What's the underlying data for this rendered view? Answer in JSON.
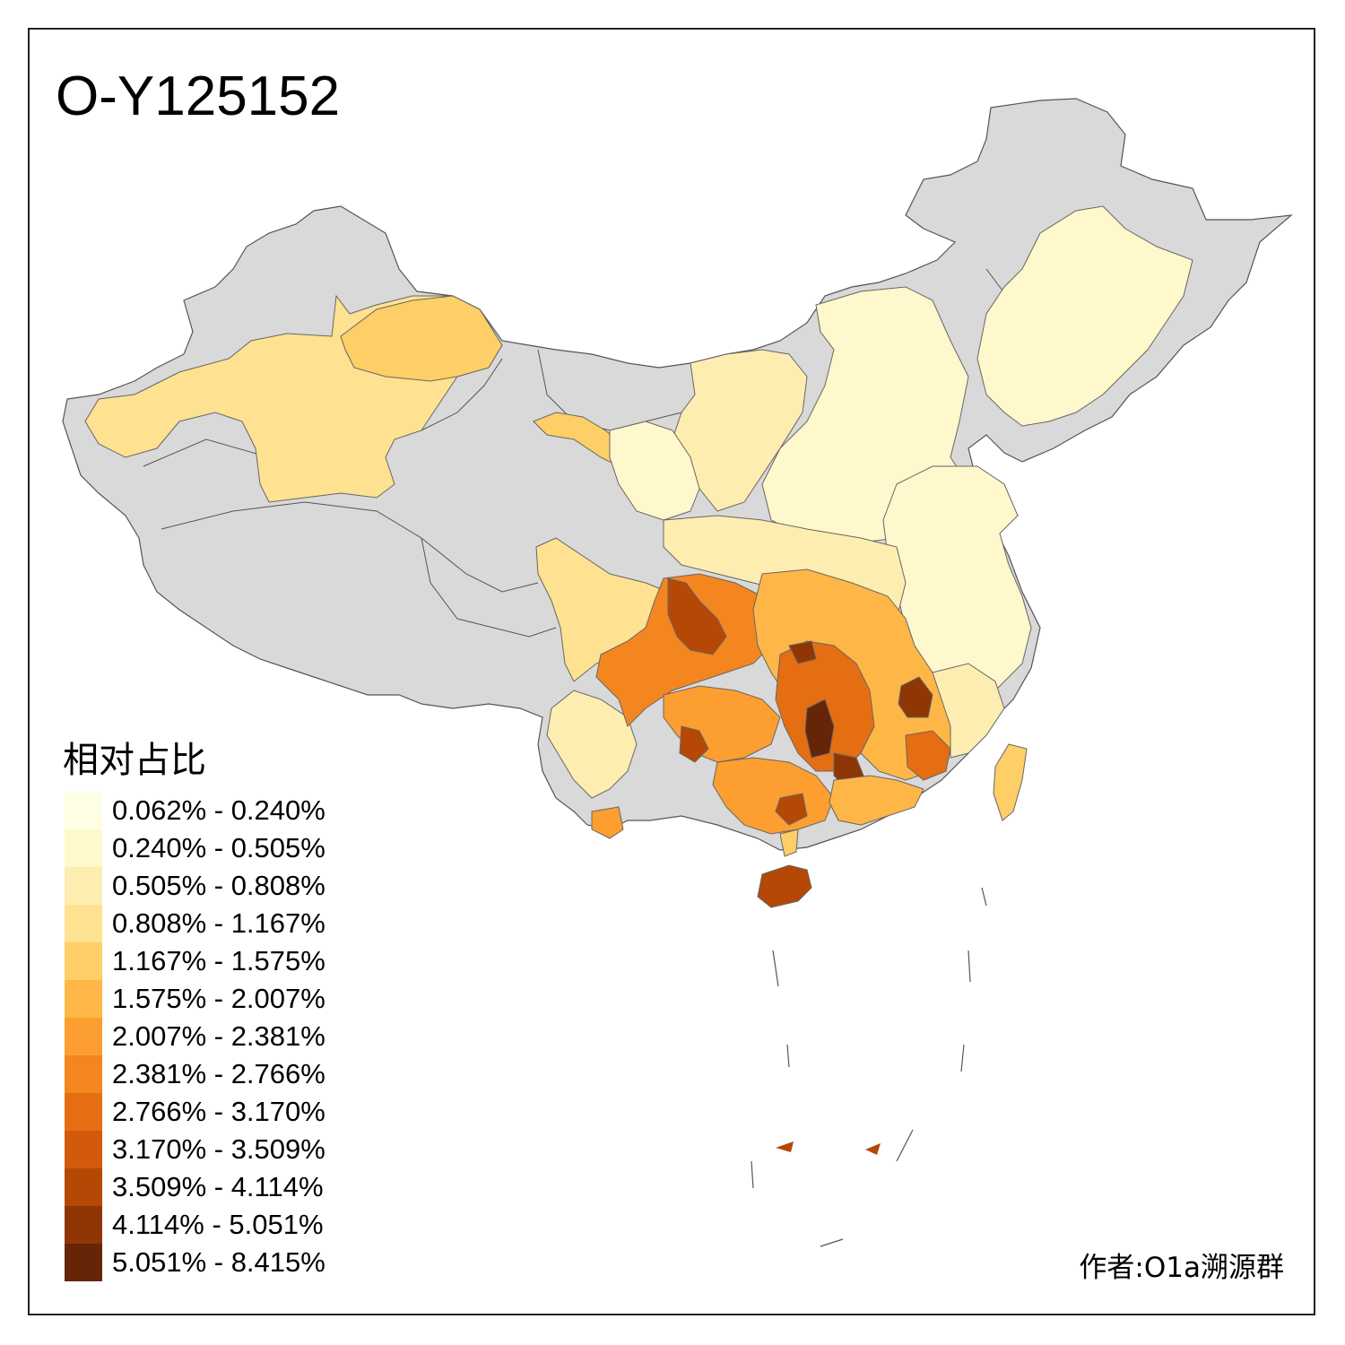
{
  "map": {
    "title": "O-Y125152",
    "colors": {
      "no_data": "#d9d9d9",
      "border": "#555555"
    }
  },
  "legend": {
    "title": "相对占比",
    "items": [
      {
        "label": "0.062% - 0.240%",
        "color": "#ffffe5"
      },
      {
        "label": "0.240% - 0.505%",
        "color": "#fff8cc"
      },
      {
        "label": "0.505% - 0.808%",
        "color": "#feedb0"
      },
      {
        "label": "0.808% - 1.167%",
        "color": "#fee291"
      },
      {
        "label": "1.167% - 1.575%",
        "color": "#fecf66"
      },
      {
        "label": "1.575% - 2.007%",
        "color": "#feb747"
      },
      {
        "label": "2.007% - 2.381%",
        "color": "#fd9e31"
      },
      {
        "label": "2.381% - 2.766%",
        "color": "#f4861f"
      },
      {
        "label": "2.766% - 3.170%",
        "color": "#e56e13"
      },
      {
        "label": "3.170% - 3.509%",
        "color": "#d25a0a"
      },
      {
        "label": "3.509% - 4.114%",
        "color": "#b64805"
      },
      {
        "label": "4.114% - 5.051%",
        "color": "#8f3604"
      },
      {
        "label": "5.051% - 8.415%",
        "color": "#662506"
      }
    ]
  },
  "author": "作者:O1a溯源群"
}
